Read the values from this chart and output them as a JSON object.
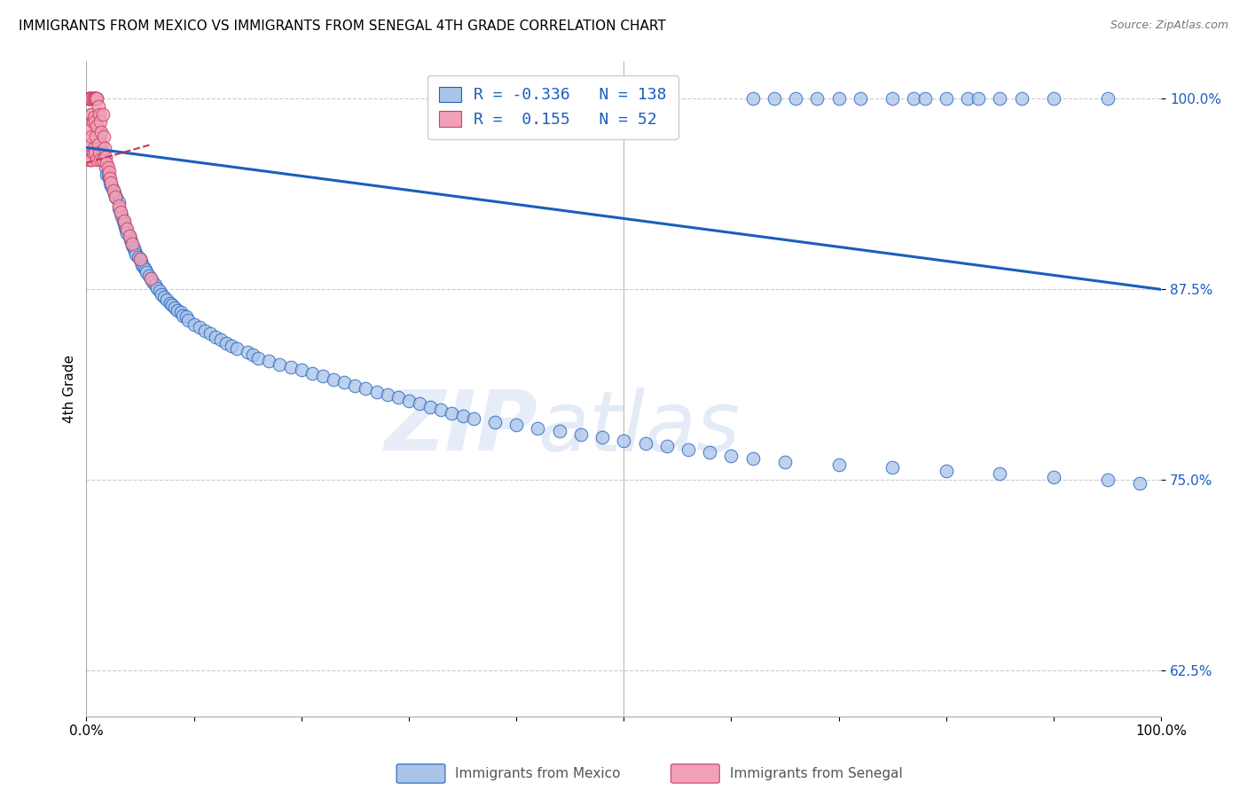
{
  "title": "IMMIGRANTS FROM MEXICO VS IMMIGRANTS FROM SENEGAL 4TH GRADE CORRELATION CHART",
  "source": "Source: ZipAtlas.com",
  "ylabel": "4th Grade",
  "xlim": [
    0.0,
    1.0
  ],
  "ylim": [
    0.595,
    1.025
  ],
  "yticks": [
    0.625,
    0.75,
    0.875,
    1.0
  ],
  "ytick_labels": [
    "62.5%",
    "75.0%",
    "87.5%",
    "100.0%"
  ],
  "xticks": [
    0.0,
    0.1,
    0.2,
    0.3,
    0.4,
    0.5,
    0.6,
    0.7,
    0.8,
    0.9,
    1.0
  ],
  "xtick_labels": [
    "0.0%",
    "",
    "",
    "",
    "",
    "",
    "",
    "",
    "",
    "",
    "100.0%"
  ],
  "blue_R": -0.336,
  "blue_N": 138,
  "pink_R": 0.155,
  "pink_N": 52,
  "blue_color": "#aac4e8",
  "pink_color": "#f0a0b8",
  "blue_edge_color": "#2060c0",
  "pink_edge_color": "#d04060",
  "blue_line_color": "#1a5ebd",
  "pink_line_color": "#cc3355",
  "legend_label_blue": "Immigrants from Mexico",
  "legend_label_pink": "Immigrants from Senegal",
  "watermark_zip": "ZIP",
  "watermark_atlas": "atlas",
  "blue_scatter_x": [
    0.002,
    0.003,
    0.004,
    0.005,
    0.005,
    0.006,
    0.007,
    0.008,
    0.009,
    0.01,
    0.01,
    0.011,
    0.012,
    0.013,
    0.014,
    0.015,
    0.016,
    0.017,
    0.018,
    0.019,
    0.02,
    0.021,
    0.022,
    0.023,
    0.024,
    0.025,
    0.026,
    0.027,
    0.028,
    0.03,
    0.03,
    0.032,
    0.033,
    0.034,
    0.035,
    0.036,
    0.037,
    0.038,
    0.04,
    0.041,
    0.042,
    0.043,
    0.044,
    0.045,
    0.046,
    0.048,
    0.05,
    0.051,
    0.052,
    0.053,
    0.055,
    0.056,
    0.058,
    0.06,
    0.062,
    0.064,
    0.066,
    0.068,
    0.07,
    0.072,
    0.075,
    0.078,
    0.08,
    0.082,
    0.085,
    0.088,
    0.09,
    0.093,
    0.095,
    0.1,
    0.105,
    0.11,
    0.115,
    0.12,
    0.125,
    0.13,
    0.135,
    0.14,
    0.15,
    0.155,
    0.16,
    0.17,
    0.18,
    0.19,
    0.2,
    0.21,
    0.22,
    0.23,
    0.24,
    0.25,
    0.26,
    0.27,
    0.28,
    0.29,
    0.3,
    0.31,
    0.32,
    0.33,
    0.34,
    0.35,
    0.36,
    0.38,
    0.4,
    0.42,
    0.44,
    0.46,
    0.48,
    0.5,
    0.52,
    0.54,
    0.56,
    0.58,
    0.6,
    0.62,
    0.65,
    0.7,
    0.75,
    0.8,
    0.85,
    0.9,
    0.95,
    0.98,
    0.62,
    0.64,
    0.66,
    0.68,
    0.7,
    0.72,
    0.75,
    0.77,
    0.78,
    0.8,
    0.82,
    0.83,
    0.85,
    0.87,
    0.9,
    0.95
  ],
  "blue_scatter_y": [
    1.0,
    1.0,
    1.0,
    1.0,
    0.99,
    1.0,
    1.0,
    1.0,
    1.0,
    1.0,
    0.98,
    0.98,
    0.975,
    0.97,
    0.97,
    0.965,
    0.96,
    0.96,
    0.955,
    0.95,
    0.95,
    0.948,
    0.945,
    0.943,
    0.942,
    0.94,
    0.938,
    0.936,
    0.935,
    0.932,
    0.928,
    0.925,
    0.923,
    0.92,
    0.918,
    0.916,
    0.914,
    0.912,
    0.91,
    0.908,
    0.906,
    0.904,
    0.902,
    0.9,
    0.898,
    0.896,
    0.895,
    0.893,
    0.891,
    0.89,
    0.888,
    0.886,
    0.884,
    0.882,
    0.88,
    0.878,
    0.876,
    0.874,
    0.872,
    0.87,
    0.868,
    0.866,
    0.865,
    0.863,
    0.861,
    0.86,
    0.858,
    0.857,
    0.855,
    0.852,
    0.85,
    0.848,
    0.846,
    0.844,
    0.842,
    0.84,
    0.838,
    0.836,
    0.834,
    0.832,
    0.83,
    0.828,
    0.826,
    0.824,
    0.822,
    0.82,
    0.818,
    0.816,
    0.814,
    0.812,
    0.81,
    0.808,
    0.806,
    0.804,
    0.802,
    0.8,
    0.798,
    0.796,
    0.794,
    0.792,
    0.79,
    0.788,
    0.786,
    0.784,
    0.782,
    0.78,
    0.778,
    0.776,
    0.774,
    0.772,
    0.77,
    0.768,
    0.766,
    0.764,
    0.762,
    0.76,
    0.758,
    0.756,
    0.754,
    0.752,
    0.75,
    0.748,
    1.0,
    1.0,
    1.0,
    1.0,
    1.0,
    1.0,
    1.0,
    1.0,
    1.0,
    1.0,
    1.0,
    1.0,
    1.0,
    1.0,
    1.0,
    1.0
  ],
  "pink_scatter_x": [
    0.002,
    0.002,
    0.003,
    0.003,
    0.004,
    0.004,
    0.004,
    0.005,
    0.005,
    0.005,
    0.005,
    0.006,
    0.006,
    0.006,
    0.007,
    0.007,
    0.007,
    0.008,
    0.008,
    0.008,
    0.009,
    0.009,
    0.01,
    0.01,
    0.01,
    0.011,
    0.011,
    0.012,
    0.012,
    0.013,
    0.013,
    0.014,
    0.015,
    0.015,
    0.016,
    0.017,
    0.018,
    0.019,
    0.02,
    0.021,
    0.022,
    0.023,
    0.025,
    0.027,
    0.03,
    0.032,
    0.035,
    0.038,
    0.04,
    0.043,
    0.05,
    0.06
  ],
  "pink_scatter_y": [
    1.0,
    0.96,
    1.0,
    0.97,
    1.0,
    0.98,
    0.96,
    1.0,
    0.99,
    0.975,
    0.96,
    1.0,
    0.985,
    0.965,
    1.0,
    0.988,
    0.968,
    1.0,
    0.985,
    0.965,
    1.0,
    0.975,
    1.0,
    0.982,
    0.96,
    0.995,
    0.97,
    0.99,
    0.965,
    0.985,
    0.96,
    0.978,
    0.99,
    0.96,
    0.975,
    0.968,
    0.962,
    0.958,
    0.955,
    0.952,
    0.948,
    0.945,
    0.94,
    0.936,
    0.93,
    0.926,
    0.92,
    0.915,
    0.91,
    0.905,
    0.895,
    0.882
  ],
  "blue_trend_x0": 0.0,
  "blue_trend_x1": 1.0,
  "blue_trend_y0": 0.968,
  "blue_trend_y1": 0.875,
  "pink_trend_x0": 0.0,
  "pink_trend_x1": 0.06,
  "pink_trend_y0": 0.958,
  "pink_trend_y1": 0.97
}
